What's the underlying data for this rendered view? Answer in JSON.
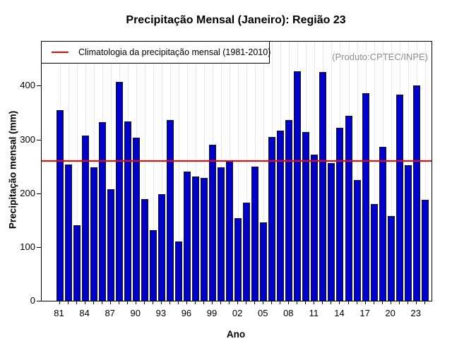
{
  "title": "Precipitação Mensal (Janeiro): Região 23",
  "annotation": "(Produto:CPTEC/INPE)",
  "legend": {
    "label": "Climatologia da precipitação mensal (1981-2010)"
  },
  "axes": {
    "x_label": "Ano",
    "y_label": "Precipitação mensal (mm)"
  },
  "colors": {
    "bar_fill": "#0000CD",
    "bar_border": "#151515",
    "climatology_line": "#FF0000",
    "grid": "#D8D8D8",
    "annotation_text": "#8C8C8C"
  },
  "chart_data": {
    "type": "bar",
    "title": "Precipitação Mensal (Janeiro): Região 23",
    "xlabel": "Ano",
    "ylabel": "Precipitação mensal (mm)",
    "categories": [
      1981,
      1982,
      1983,
      1984,
      1985,
      1986,
      1987,
      1988,
      1989,
      1990,
      1991,
      1992,
      1993,
      1994,
      1995,
      1996,
      1997,
      1998,
      1999,
      2000,
      2001,
      2002,
      2003,
      2004,
      2005,
      2006,
      2007,
      2008,
      2009,
      2010,
      2011,
      2012,
      2013,
      2014,
      2015,
      2016,
      2017,
      2018,
      2019,
      2020,
      2021,
      2022,
      2023,
      2024
    ],
    "values": [
      355,
      254,
      141,
      308,
      248,
      332,
      208,
      407,
      333,
      303,
      189,
      132,
      198,
      336,
      110,
      240,
      231,
      228,
      290,
      248,
      261,
      154,
      183,
      250,
      146,
      305,
      317,
      336,
      427,
      314,
      272,
      425,
      256,
      322,
      344,
      225,
      386,
      180,
      286,
      158,
      383,
      252,
      400,
      188
    ],
    "x_tick_labels": [
      "81",
      "84",
      "87",
      "90",
      "93",
      "96",
      "99",
      "02",
      "05",
      "08",
      "11",
      "14",
      "17",
      "20",
      "23"
    ],
    "x_tick_label_interval": 3,
    "y_ticks": [
      0,
      100,
      200,
      300,
      400
    ],
    "ylim": [
      0,
      482
    ],
    "climatology_mean": 260,
    "climatology_label": "Climatologia da precipitação mensal (1981-2010)",
    "legend_position": "top-left",
    "grid": "vertical-dotted"
  }
}
